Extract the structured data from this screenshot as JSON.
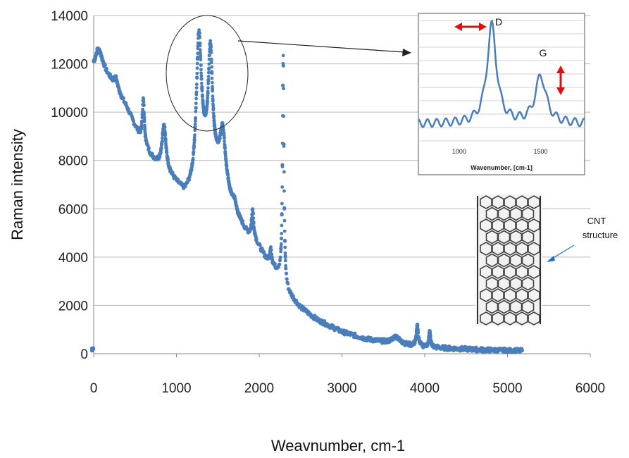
{
  "chart_data": {
    "type": "scatter",
    "xlabel": "Weavnumber, cm-1",
    "ylabel": "Raman intensity",
    "xlim": [
      0,
      6000
    ],
    "ylim": [
      0,
      14000
    ],
    "xticks": [
      0,
      1000,
      2000,
      3000,
      4000,
      5000,
      6000
    ],
    "yticks": [
      0,
      2000,
      4000,
      6000,
      8000,
      10000,
      12000,
      14000
    ],
    "grid": "horizontal",
    "series_color": "#4a7ebb",
    "baseline": [
      [
        0,
        12000
      ],
      [
        80,
        12300
      ],
      [
        150,
        11700
      ],
      [
        300,
        10800
      ],
      [
        400,
        10200
      ],
      [
        500,
        9400
      ],
      [
        600,
        8700
      ],
      [
        700,
        8100
      ],
      [
        800,
        7700
      ],
      [
        950,
        7200
      ],
      [
        1100,
        6600
      ],
      [
        1200,
        6900
      ],
      [
        1300,
        8200
      ],
      [
        1450,
        7900
      ],
      [
        1550,
        7700
      ],
      [
        1650,
        6400
      ],
      [
        1750,
        5600
      ],
      [
        1850,
        5000
      ],
      [
        1950,
        4700
      ],
      [
        2050,
        4100
      ],
      [
        2150,
        3600
      ],
      [
        2250,
        3300
      ],
      [
        2350,
        2500
      ],
      [
        2500,
        1900
      ],
      [
        2700,
        1400
      ],
      [
        3000,
        900
      ],
      [
        3300,
        600
      ],
      [
        3600,
        420
      ],
      [
        3800,
        340
      ],
      [
        4000,
        280
      ],
      [
        4300,
        220
      ],
      [
        4700,
        160
      ],
      [
        5000,
        130
      ],
      [
        5180,
        120
      ]
    ],
    "peaks": [
      {
        "x": 50,
        "y": 12600,
        "w": 25
      },
      {
        "x": 270,
        "y": 11400,
        "w": 25
      },
      {
        "x": 600,
        "y": 10500,
        "w": 14
      },
      {
        "x": 850,
        "y": 9400,
        "w": 30
      },
      {
        "x": 1270,
        "y": 13100,
        "w": 35
      },
      {
        "x": 1410,
        "y": 12500,
        "w": 30
      },
      {
        "x": 1560,
        "y": 9200,
        "w": 35
      },
      {
        "x": 1700,
        "y": 6300,
        "w": 25
      },
      {
        "x": 1920,
        "y": 5900,
        "w": 14
      },
      {
        "x": 2140,
        "y": 4300,
        "w": 14
      },
      {
        "x": 2290,
        "y": 12300,
        "w": 10
      },
      {
        "x": 3650,
        "y": 700,
        "w": 60
      },
      {
        "x": 3910,
        "y": 1150,
        "w": 14
      },
      {
        "x": 4060,
        "y": 900,
        "w": 12
      }
    ],
    "inset": {
      "xlabel": "Wavenumber, [cm-1]",
      "xticks": [
        1000,
        1500
      ],
      "xlim": [
        750,
        1770
      ],
      "peaks": [
        {
          "name": "D",
          "x": 1200,
          "rel": 1.0,
          "w": 35
        },
        {
          "name": "G",
          "x": 1500,
          "rel": 0.48,
          "w": 40
        }
      ]
    },
    "annotations": [
      {
        "text": "CNT",
        "target": "cnt-structure"
      },
      {
        "text": "structure",
        "target": "cnt-structure"
      }
    ]
  }
}
